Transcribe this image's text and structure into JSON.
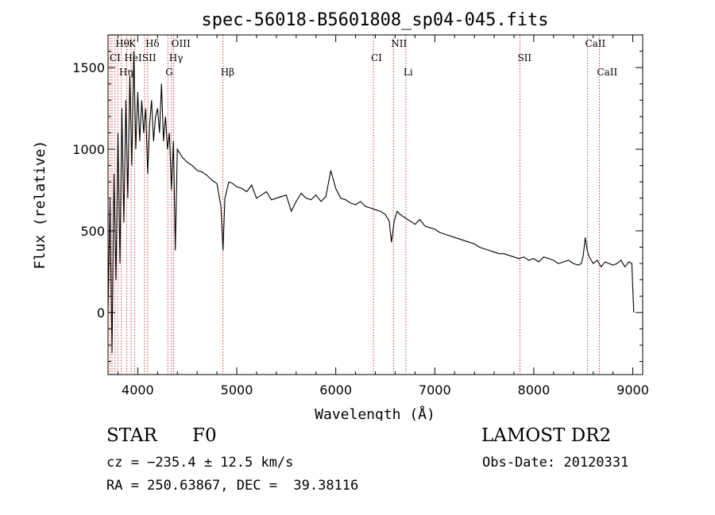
{
  "chart_data": {
    "type": "line",
    "title": "spec-56018-B5601808_sp04-045.fits",
    "xlabel": "Wavelength (Å)",
    "ylabel": "Flux (relative)",
    "xlim": [
      3700,
      9100
    ],
    "ylim": [
      -380,
      1700
    ],
    "xticks": [
      4000,
      5000,
      6000,
      7000,
      8000,
      9000
    ],
    "yticks": [
      0,
      500,
      1000,
      1500
    ],
    "xtick_labels": [
      "4000",
      "5000",
      "6000",
      "7000",
      "8000",
      "9000"
    ],
    "ytick_labels": [
      "0",
      "500",
      "1000",
      "1500"
    ],
    "grid": false,
    "line_color": "#000000",
    "marker_color": "#d62728",
    "series": [
      {
        "x": [
          3700,
          3720,
          3740,
          3760,
          3780,
          3800,
          3820,
          3840,
          3860,
          3880,
          3900,
          3920,
          3940,
          3960,
          3980,
          4000,
          4020,
          4040,
          4060,
          4080,
          4100,
          4120,
          4140,
          4160,
          4180,
          4200,
          4220,
          4240,
          4260,
          4280,
          4300,
          4320,
          4340,
          4360,
          4380,
          4400,
          4450,
          4500,
          4550,
          4600,
          4650,
          4700,
          4750,
          4800,
          4840,
          4861,
          4880,
          4920,
          4960,
          5000,
          5050,
          5100,
          5150,
          5200,
          5250,
          5300,
          5350,
          5400,
          5450,
          5500,
          5550,
          5600,
          5650,
          5700,
          5750,
          5800,
          5850,
          5900,
          5950,
          6000,
          6050,
          6100,
          6150,
          6200,
          6250,
          6300,
          6350,
          6400,
          6450,
          6500,
          6540,
          6563,
          6590,
          6620,
          6650,
          6700,
          6750,
          6800,
          6850,
          6900,
          6950,
          7000,
          7050,
          7100,
          7150,
          7200,
          7250,
          7300,
          7350,
          7400,
          7450,
          7500,
          7550,
          7600,
          7650,
          7700,
          7750,
          7800,
          7850,
          7900,
          7950,
          8000,
          8050,
          8100,
          8150,
          8200,
          8250,
          8300,
          8350,
          8400,
          8450,
          8480,
          8500,
          8520,
          8540,
          8560,
          8600,
          8640,
          8680,
          8720,
          8760,
          8800,
          8840,
          8880,
          8920,
          8960,
          8990,
          9000,
          9010
        ],
        "y": [
          0,
          700,
          -250,
          850,
          200,
          1100,
          300,
          1250,
          550,
          1300,
          700,
          1450,
          900,
          1600,
          1000,
          1350,
          1050,
          1300,
          1100,
          1250,
          850,
          1150,
          1300,
          1050,
          1200,
          1250,
          1100,
          1400,
          1050,
          1200,
          1000,
          1100,
          750,
          1050,
          380,
          1000,
          950,
          920,
          900,
          870,
          860,
          840,
          810,
          790,
          650,
          380,
          700,
          800,
          790,
          770,
          760,
          740,
          780,
          700,
          720,
          740,
          690,
          700,
          710,
          720,
          620,
          680,
          730,
          700,
          690,
          720,
          680,
          710,
          870,
          760,
          700,
          690,
          670,
          660,
          680,
          650,
          640,
          630,
          620,
          600,
          560,
          430,
          560,
          620,
          600,
          580,
          560,
          540,
          570,
          530,
          520,
          510,
          490,
          480,
          470,
          460,
          450,
          440,
          430,
          420,
          400,
          390,
          380,
          370,
          360,
          360,
          350,
          340,
          330,
          340,
          320,
          330,
          310,
          340,
          330,
          320,
          300,
          310,
          320,
          300,
          290,
          300,
          350,
          460,
          380,
          340,
          300,
          320,
          280,
          310,
          300,
          290,
          300,
          320,
          280,
          310,
          300,
          150,
          0
        ]
      }
    ],
    "line_labels": [
      {
        "text": "Hθ",
        "wave": 3798,
        "row": 0
      },
      {
        "text": "K",
        "wave": 3933,
        "row": 0
      },
      {
        "text": "Hδ",
        "wave": 4101,
        "row": 0
      },
      {
        "text": "OIII",
        "wave": 4363,
        "row": 0
      },
      {
        "text": "NII",
        "wave": 6583,
        "row": 0
      },
      {
        "text": "CaII",
        "wave": 8542,
        "row": 0
      },
      {
        "text": "CI",
        "wave": 3740,
        "row": 1
      },
      {
        "text": "HeI",
        "wave": 3888,
        "row": 1
      },
      {
        "text": "SII",
        "wave": 4068,
        "row": 1
      },
      {
        "text": "Hγ",
        "wave": 4340,
        "row": 1
      },
      {
        "text": "CI",
        "wave": 6380,
        "row": 1
      },
      {
        "text": "SII",
        "wave": 7860,
        "row": 1
      },
      {
        "text": "Hη",
        "wave": 3835,
        "row": 2
      },
      {
        "text": "G",
        "wave": 4304,
        "row": 2
      },
      {
        "text": "Hβ",
        "wave": 4861,
        "row": 2
      },
      {
        "text": "Li",
        "wave": 6708,
        "row": 2
      },
      {
        "text": "CaII",
        "wave": 8662,
        "row": 2
      }
    ],
    "marker_lines": [
      3720,
      3740,
      3770,
      3798,
      3835,
      3889,
      3933,
      3968,
      4068,
      4101,
      4304,
      4340,
      4363,
      4861,
      6380,
      6583,
      6708,
      7860,
      8542,
      8662
    ]
  },
  "info": {
    "object_type": "STAR",
    "spectral_class": "F0",
    "survey": "LAMOST DR2",
    "velocity": "cz = −235.4 ± 12.5 km/s",
    "obs_date": "Obs-Date: 20120331",
    "coordinates": "RA = 250.63867, DEC =  39.38116"
  }
}
